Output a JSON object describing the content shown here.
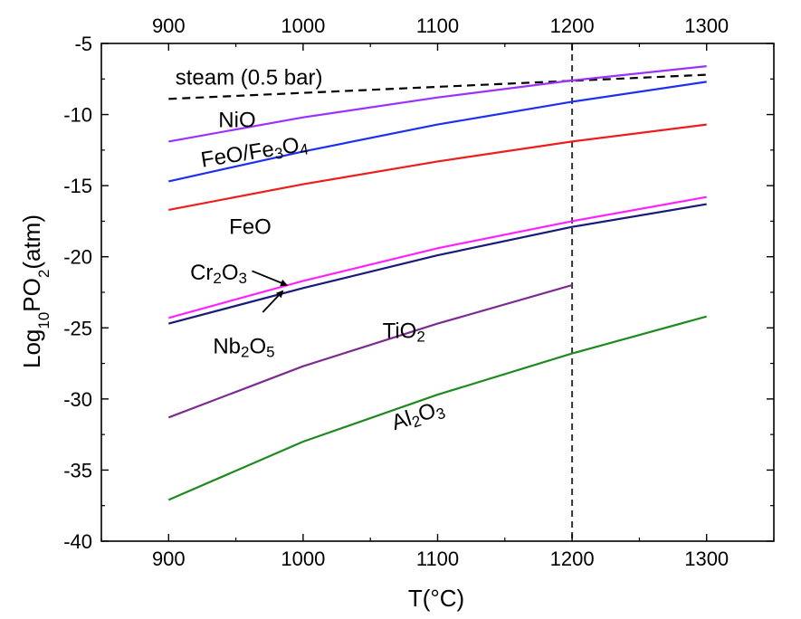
{
  "chart_data": {
    "type": "line",
    "xlabel": "T(°C)",
    "ylabel": {
      "prefix": "Log",
      "sub1": "10",
      "mid": "PO",
      "sub2": "2",
      "suffix": "(atm)"
    },
    "xlim": [
      850,
      1350
    ],
    "ylim": [
      -40,
      -5
    ],
    "x_ticks": [
      900,
      1000,
      1100,
      1200,
      1300
    ],
    "y_ticks": [
      -40,
      -35,
      -30,
      -25,
      -20,
      -15,
      -10,
      -5
    ],
    "top_axis_ticks": [
      900,
      1000,
      1100,
      1200,
      1300
    ],
    "vertical_reference_line": {
      "x": 1200,
      "style": "dashed",
      "color": "#333333"
    },
    "series": [
      {
        "name": "steam (0.5 bar)",
        "color": "#000000",
        "dashed": true,
        "x": [
          900,
          1300
        ],
        "y": [
          -8.9,
          -7.2
        ]
      },
      {
        "name": "NiO",
        "color": "#9b30ff",
        "dashed": false,
        "x": [
          900,
          1000,
          1100,
          1200,
          1300
        ],
        "y": [
          -11.9,
          -10.2,
          -8.8,
          -7.6,
          -6.6
        ]
      },
      {
        "name": "FeO/Fe3O4",
        "color": "#1f2ff0",
        "dashed": false,
        "x": [
          900,
          1000,
          1100,
          1200,
          1300
        ],
        "y": [
          -14.7,
          -12.6,
          -10.7,
          -9.1,
          -7.7
        ]
      },
      {
        "name": "FeO",
        "color": "#ee1c1c",
        "dashed": false,
        "x": [
          900,
          1000,
          1100,
          1200,
          1300
        ],
        "y": [
          -16.7,
          -14.9,
          -13.3,
          -11.9,
          -10.7
        ]
      },
      {
        "name": "Cr2O3",
        "color": "#ff22ff",
        "dashed": false,
        "x": [
          900,
          1000,
          1100,
          1200,
          1300
        ],
        "y": [
          -24.3,
          -21.7,
          -19.4,
          -17.5,
          -15.8
        ]
      },
      {
        "name": "Nb2O5",
        "color": "#1a1a7a",
        "dashed": false,
        "x": [
          900,
          1000,
          1100,
          1200,
          1300
        ],
        "y": [
          -24.7,
          -22.2,
          -19.9,
          -17.9,
          -16.3
        ]
      },
      {
        "name": "TiO2",
        "color": "#7b2c8e",
        "dashed": false,
        "x": [
          900,
          1000,
          1100,
          1200
        ],
        "y": [
          -31.3,
          -27.7,
          -24.7,
          -22.0
        ]
      },
      {
        "name": "Al2O3",
        "color": "#1f8a1f",
        "dashed": false,
        "x": [
          900,
          1000,
          1100,
          1200,
          1300
        ],
        "y": [
          -37.1,
          -33.0,
          -29.7,
          -26.8,
          -24.2
        ]
      }
    ],
    "labels": [
      {
        "for": "steam (0.5 bar)",
        "parts": [
          [
            "steam (0.5 bar)",
            false
          ]
        ],
        "x": 905,
        "y": -7.9,
        "rotate": 0
      },
      {
        "for": "NiO",
        "parts": [
          [
            "NiO",
            false
          ]
        ],
        "x": 937,
        "y": -10.9,
        "rotate": 0
      },
      {
        "for": "FeO/Fe3O4",
        "parts": [
          [
            "FeO/Fe",
            false
          ],
          [
            "3",
            true
          ],
          [
            "O",
            false
          ],
          [
            "4",
            true
          ]
        ],
        "x": 925,
        "y": -13.7,
        "rotate": -9
      },
      {
        "for": "FeO",
        "parts": [
          [
            "FeO",
            false
          ]
        ],
        "x": 945,
        "y": -18.4,
        "rotate": 0
      },
      {
        "for": "Cr2O3",
        "parts": [
          [
            "Cr",
            false
          ],
          [
            "2",
            true
          ],
          [
            "O",
            false
          ],
          [
            "3",
            true
          ]
        ],
        "x": 916,
        "y": -21.6,
        "rotate": 0
      },
      {
        "for": "Nb2O5",
        "parts": [
          [
            "Nb",
            false
          ],
          [
            "2",
            true
          ],
          [
            "O",
            false
          ],
          [
            "5",
            true
          ]
        ],
        "x": 933,
        "y": -26.8,
        "rotate": 0
      },
      {
        "for": "TiO2",
        "parts": [
          [
            "TiO",
            false
          ],
          [
            "2",
            true
          ]
        ],
        "x": 1059,
        "y": -25.7,
        "rotate": 0
      },
      {
        "for": "Al2O3",
        "parts": [
          [
            "Al",
            false
          ],
          [
            "2",
            true
          ],
          [
            "O",
            false
          ],
          [
            "3",
            true
          ]
        ],
        "x": 1068,
        "y": -32.2,
        "rotate": -18
      }
    ],
    "arrows": [
      {
        "from": [
          962,
          -21.0
        ],
        "to": [
          988,
          -22.0
        ]
      },
      {
        "from": [
          970,
          -23.9
        ],
        "to": [
          985,
          -22.4
        ]
      }
    ],
    "grid": false,
    "legend": "none"
  }
}
